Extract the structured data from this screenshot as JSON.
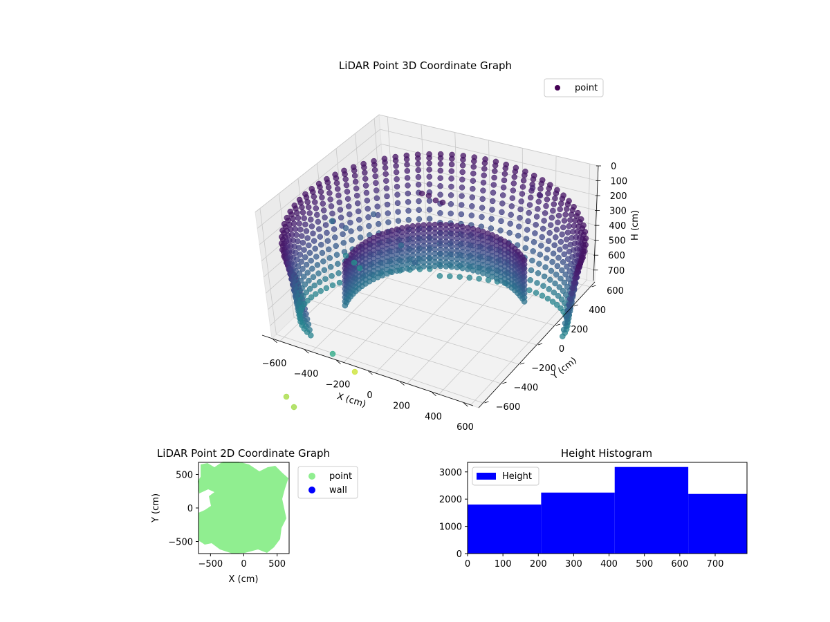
{
  "chart_data": [
    {
      "type": "scatter",
      "projection": "3d",
      "title": "LiDAR Point 3D Coordinate Graph",
      "xlabel": "X (cm)",
      "ylabel": "Y (cm)",
      "zlabel": "H (cm)",
      "xticks": [
        -600,
        -400,
        -200,
        0,
        200,
        400,
        600
      ],
      "yticks": [
        -600,
        -400,
        -200,
        0,
        200,
        400,
        600
      ],
      "zticks": [
        0,
        100,
        200,
        300,
        400,
        500,
        600,
        700
      ],
      "xlim": [
        -650,
        650
      ],
      "ylim": [
        -650,
        650
      ],
      "zlim": [
        0,
        780
      ],
      "z_inverted": true,
      "legend": [
        "point"
      ],
      "legend_loc": "upper right",
      "grid": true,
      "colormap": "viridis",
      "shape": "hemispherical dome of points surrounding the sensor, with an inner curved wall section and sparse interior points"
    },
    {
      "type": "scatter",
      "title": "LiDAR Point 2D Coordinate Graph",
      "xlabel": "X (cm)",
      "ylabel": "Y (cm)",
      "xticks": [
        -500,
        0,
        500
      ],
      "yticks": [
        -500,
        0,
        500
      ],
      "xlim": [
        -680,
        680
      ],
      "ylim": [
        -680,
        680
      ],
      "series": [
        {
          "name": "point",
          "color": "#90ee90"
        },
        {
          "name": "wall",
          "color": "#0000ff"
        }
      ],
      "legend_loc": "outside right"
    },
    {
      "type": "bar",
      "title": "Height Histogram",
      "xticks": [
        0,
        100,
        200,
        300,
        400,
        500,
        600,
        700
      ],
      "yticks": [
        0,
        1000,
        2000,
        3000
      ],
      "xlim": [
        0,
        790
      ],
      "ylim": [
        0,
        3350
      ],
      "bins": [
        {
          "x0": 0,
          "x1": 208,
          "count": 1800
        },
        {
          "x0": 208,
          "x1": 416,
          "count": 2240
        },
        {
          "x0": 416,
          "x1": 624,
          "count": 3180
        },
        {
          "x0": 624,
          "x1": 790,
          "count": 2190
        }
      ],
      "series": [
        {
          "name": "Height",
          "color": "#0000ff"
        }
      ],
      "legend_loc": "upper left"
    }
  ]
}
